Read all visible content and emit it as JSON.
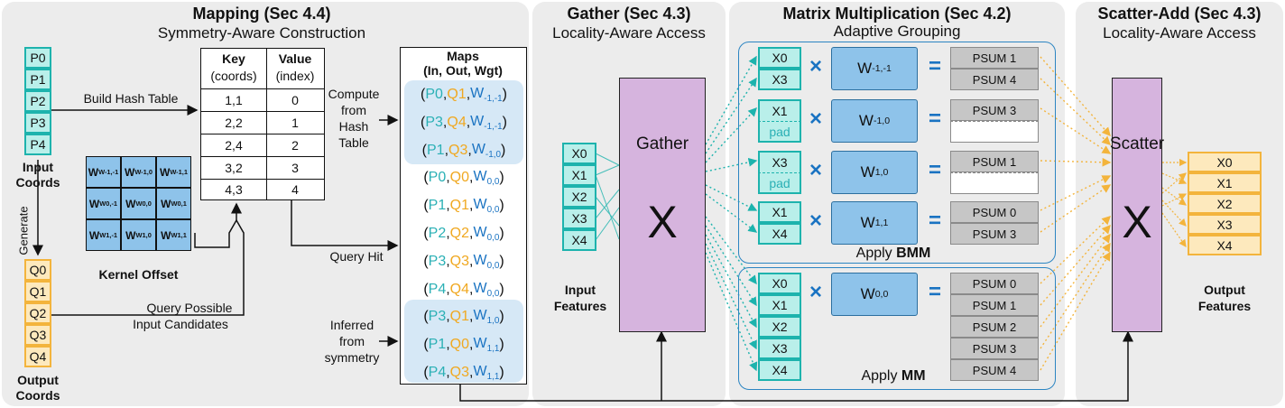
{
  "mapping": {
    "title": "Mapping (Sec 4.4)",
    "subtitle": "Symmetry-Aware Construction",
    "input_coords": [
      "P0",
      "P1",
      "P2",
      "P3",
      "P4"
    ],
    "input_coords_label": "Input Coords",
    "output_coords": [
      "Q0",
      "Q1",
      "Q2",
      "Q3",
      "Q4"
    ],
    "output_coords_label": "Output Coords",
    "generate_label": "Generate",
    "build_hash_label": "Build Hash Table",
    "query_possible_label": "Query Possible",
    "input_candidates_label": "Input Candidates",
    "kernel_offset_label": "Kernel Offset",
    "hash_table": {
      "key_header": "Key",
      "key_sub": "(coords)",
      "value_header": "Value",
      "value_sub": "(index)",
      "rows": [
        [
          "1,1",
          "0"
        ],
        [
          "2,2",
          "1"
        ],
        [
          "2,4",
          "2"
        ],
        [
          "3,2",
          "3"
        ],
        [
          "4,3",
          "4"
        ]
      ]
    },
    "kernel": [
      [
        "W-1,-1",
        "W-1,0",
        "W-1,1"
      ],
      [
        "W0,-1",
        "W0,0",
        "W0,1"
      ],
      [
        "W1,-1",
        "W1,0",
        "W1,1"
      ]
    ],
    "compute_label": [
      "Compute",
      "from",
      "Hash",
      "Table"
    ],
    "query_hit_label": "Query Hit",
    "inferred_label": [
      "Inferred",
      "from",
      "symmetry"
    ],
    "maps_title": "Maps",
    "maps_subtitle": "(In, Out, Wgt)",
    "maps": [
      {
        "p": "P0",
        "q": "Q1",
        "w": "-1,-1"
      },
      {
        "p": "P3",
        "q": "Q4",
        "w": "-1,-1"
      },
      {
        "p": "P1",
        "q": "Q3",
        "w": "-1,0"
      },
      {
        "p": "P0",
        "q": "Q0",
        "w": "0,0"
      },
      {
        "p": "P1",
        "q": "Q1",
        "w": "0,0"
      },
      {
        "p": "P2",
        "q": "Q2",
        "w": "0,0"
      },
      {
        "p": "P3",
        "q": "Q3",
        "w": "0,0"
      },
      {
        "p": "P4",
        "q": "Q4",
        "w": "0,0"
      },
      {
        "p": "P3",
        "q": "Q1",
        "w": "1,0"
      },
      {
        "p": "P1",
        "q": "Q0",
        "w": "1,1"
      },
      {
        "p": "P4",
        "q": "Q3",
        "w": "1,1"
      }
    ]
  },
  "gather": {
    "title": "Gather (Sec 4.3)",
    "subtitle": "Locality-Aware Access",
    "features": [
      "X0",
      "X1",
      "X2",
      "X3",
      "X4"
    ],
    "features_label": "Input Features",
    "block_label": "Gather",
    "crossing_symbol": "X"
  },
  "matmul": {
    "title": "Matrix Multiplication (Sec 4.2)",
    "subtitle": "Adaptive Grouping",
    "times": "×",
    "equals": "=",
    "bmm_label_prefix": "Apply ",
    "bmm_label_bold": "BMM",
    "mm_label_prefix": "Apply ",
    "mm_label_bold": "MM",
    "bmm_rows": [
      {
        "inputs": [
          "X0",
          "X3"
        ],
        "weight": "-1,-1",
        "psums": [
          "PSUM 1",
          "PSUM 4"
        ]
      },
      {
        "inputs": [
          "X1",
          "pad"
        ],
        "weight": "-1,0",
        "psums": [
          "PSUM 3",
          ""
        ]
      },
      {
        "inputs": [
          "X3",
          "pad"
        ],
        "weight": "1,0",
        "psums": [
          "PSUM 1",
          ""
        ]
      },
      {
        "inputs": [
          "X1",
          "X4"
        ],
        "weight": "1,1",
        "psums": [
          "PSUM 0",
          "PSUM 3"
        ]
      }
    ],
    "mm_inputs": [
      "X0",
      "X1",
      "X2",
      "X3",
      "X4"
    ],
    "mm_weight": "0,0",
    "mm_psums": [
      "PSUM 0",
      "PSUM 1",
      "PSUM 2",
      "PSUM 3",
      "PSUM 4"
    ]
  },
  "scatter": {
    "title": "Scatter-Add (Sec 4.3)",
    "subtitle": "Locality-Aware Access",
    "block_label": "Scatter",
    "crossing_symbol": "X",
    "outputs": [
      "X0",
      "X1",
      "X2",
      "X3",
      "X4"
    ],
    "outputs_label": "Output Features"
  },
  "colors": {
    "teal": "#1db3ad",
    "orange": "#f3b43c",
    "blue": "#1a73c2",
    "purple": "#d6b4de"
  }
}
